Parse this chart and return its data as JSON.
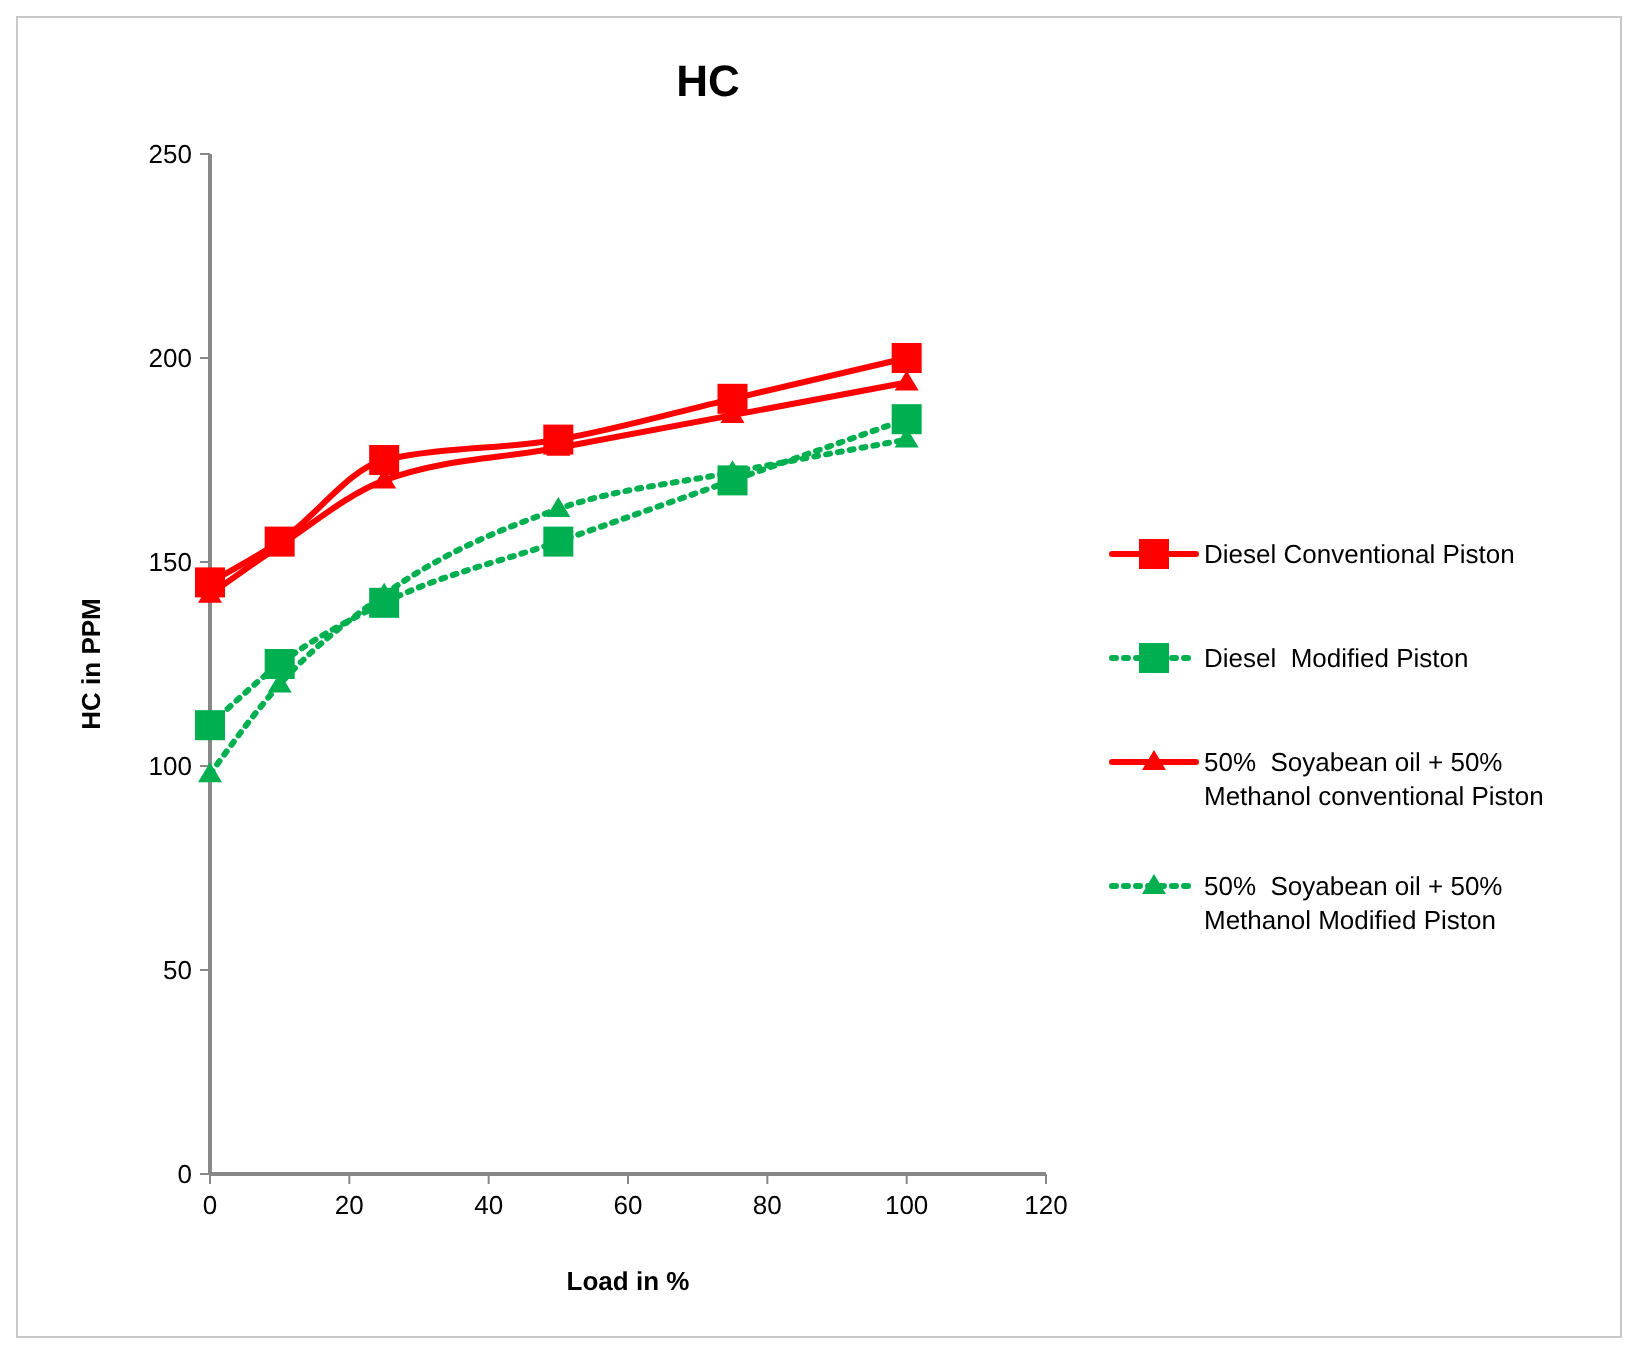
{
  "chart_data": {
    "type": "line",
    "title": "HC",
    "xlabel": "Load in %",
    "ylabel": "HC in PPM",
    "x": [
      0,
      10,
      25,
      50,
      75,
      100
    ],
    "xlim": [
      0,
      120
    ],
    "xticks": [
      0,
      20,
      40,
      60,
      80,
      100,
      120
    ],
    "ylim": [
      0,
      250
    ],
    "yticks": [
      0,
      50,
      100,
      150,
      200,
      250
    ],
    "grid": false,
    "legend": "right",
    "series": [
      {
        "name": "Diesel Conventional Piston",
        "color": "#ff0000",
        "marker": "square",
        "line_style": "solid",
        "values": [
          145,
          155,
          175,
          180,
          190,
          200
        ]
      },
      {
        "name": "Diesel  Modified Piston",
        "color": "#00b050",
        "marker": "square",
        "line_style": "dotted",
        "values": [
          110,
          125,
          140,
          155,
          170,
          185
        ]
      },
      {
        "name": "50%  Soyabean oil + 50% Methanol conventional Piston",
        "color": "#ff0000",
        "marker": "triangle",
        "line_style": "solid",
        "values": [
          142,
          154,
          170,
          178,
          186,
          194
        ]
      },
      {
        "name": "50%  Soyabean oil + 50% Methanol Modified Piston",
        "color": "#00b050",
        "marker": "triangle",
        "line_style": "dotted",
        "values": [
          98,
          120,
          142,
          163,
          172,
          180
        ]
      }
    ]
  }
}
